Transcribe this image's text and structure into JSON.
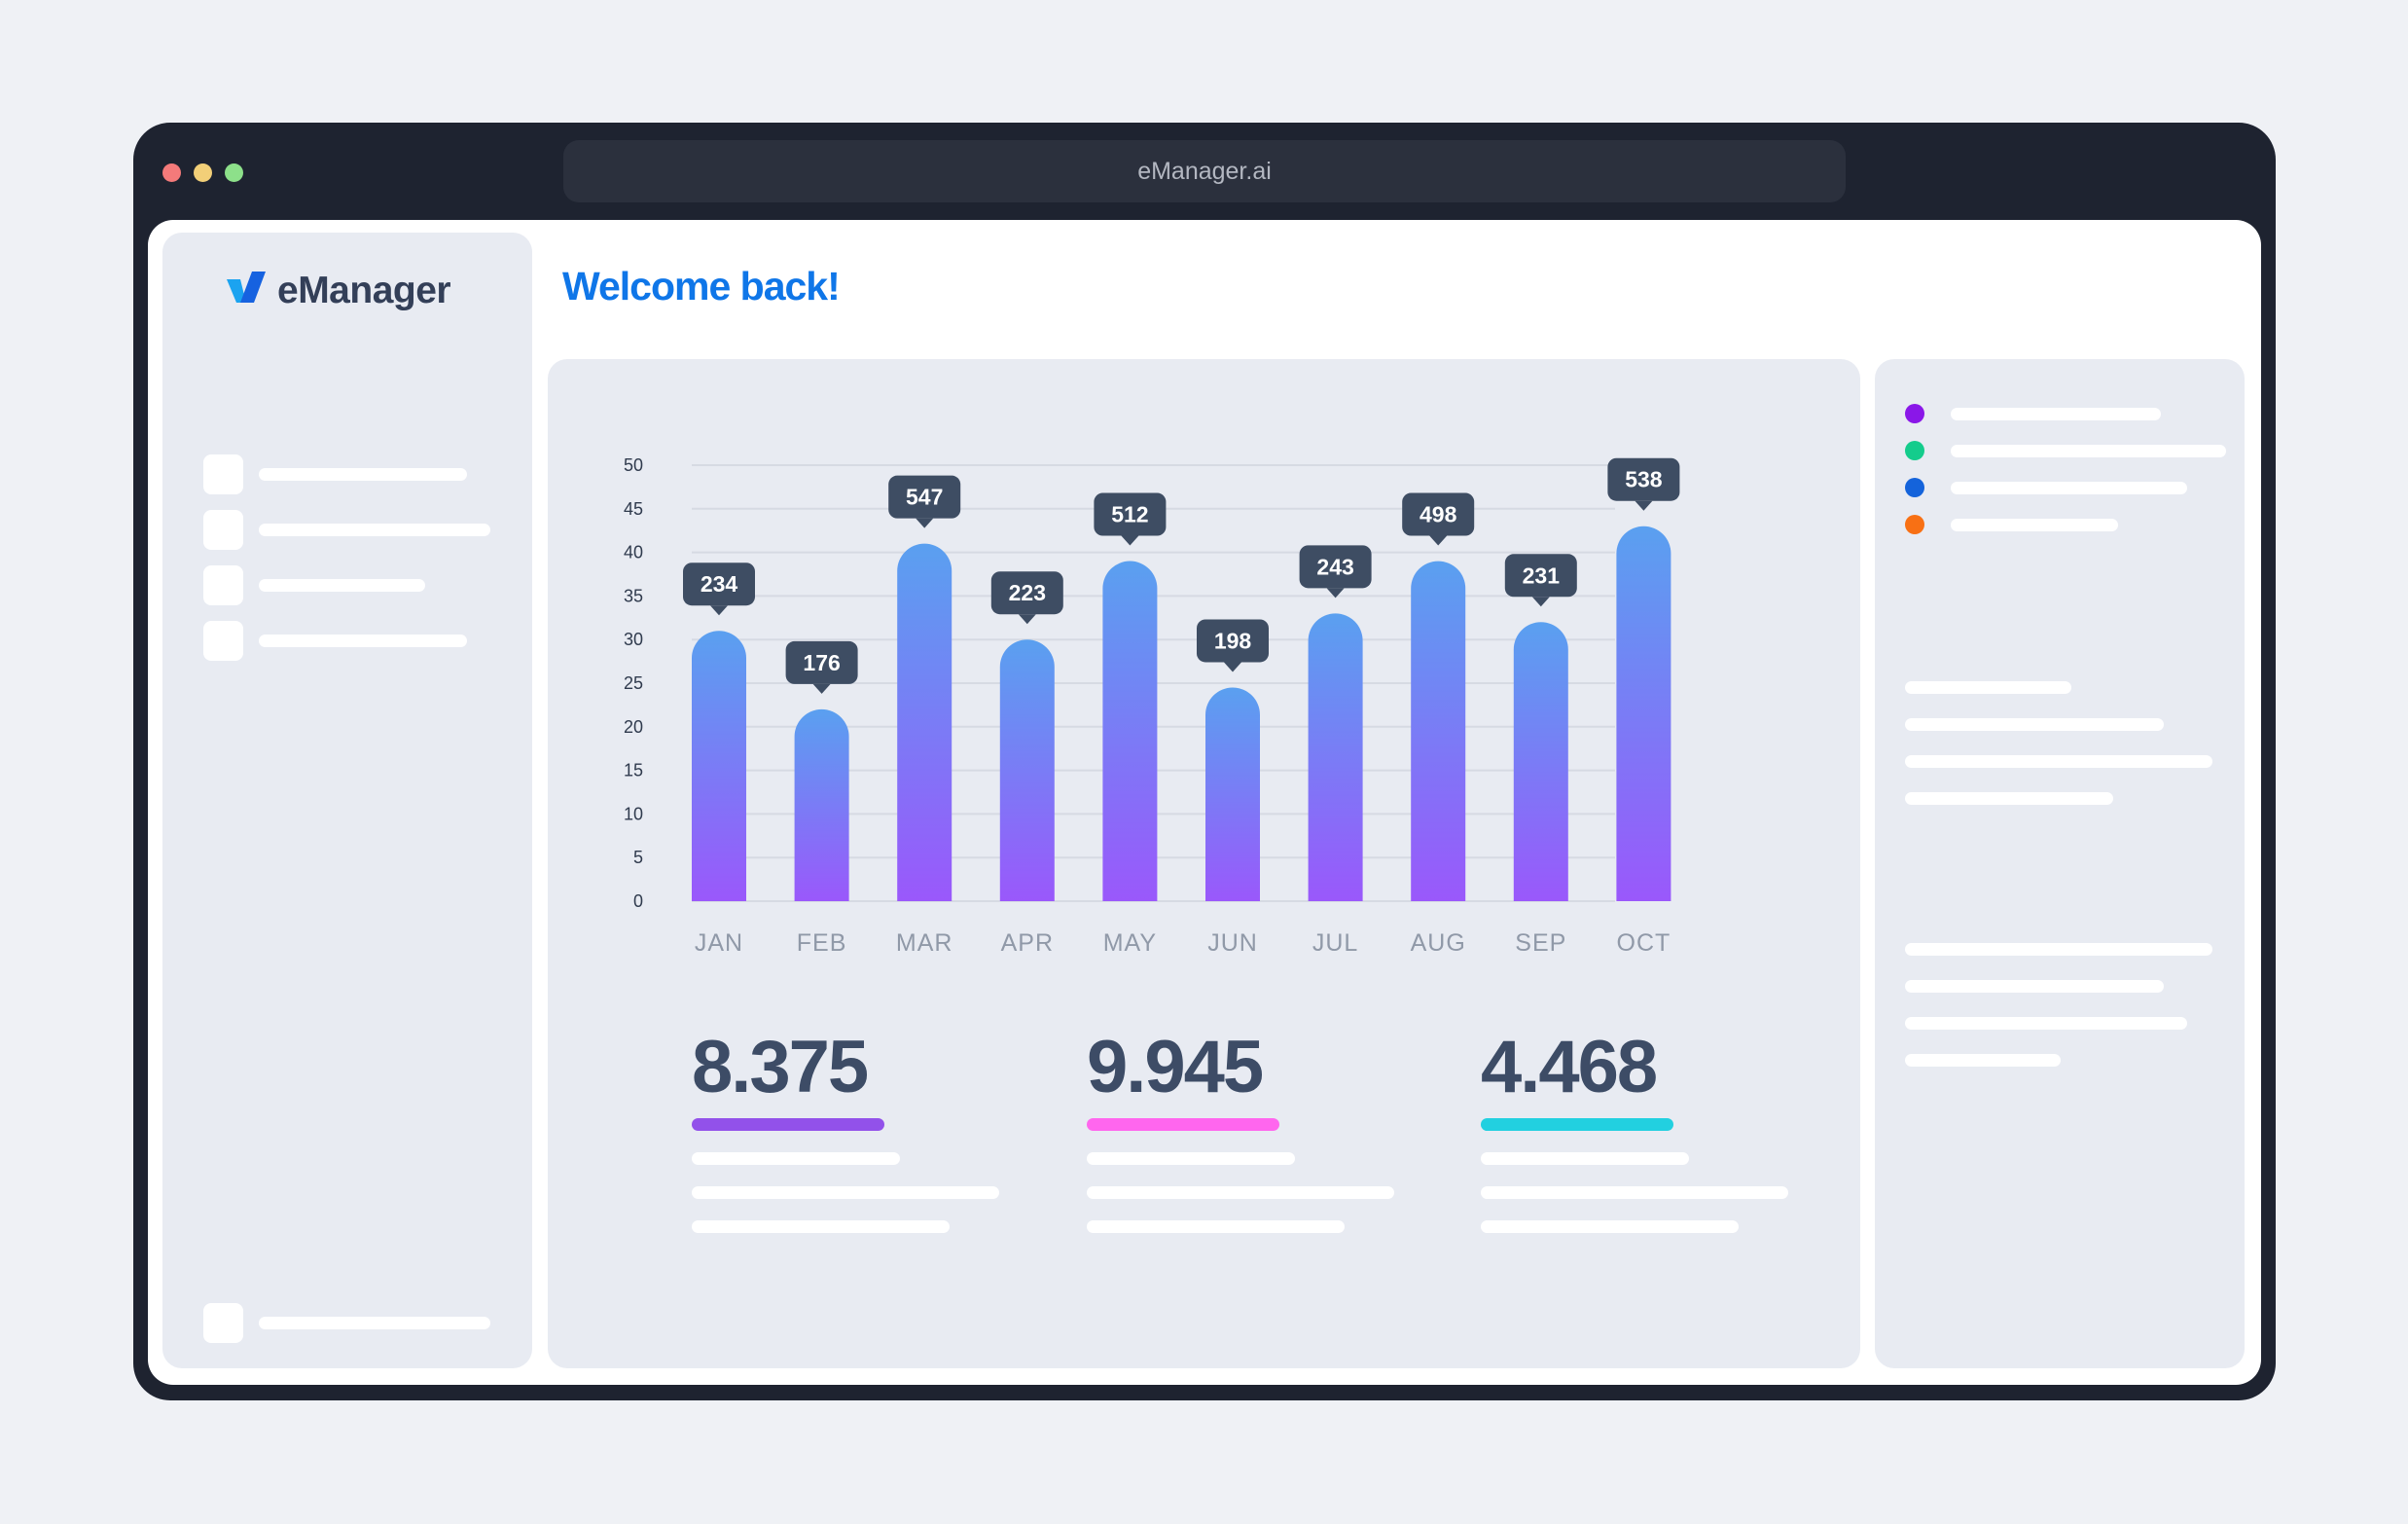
{
  "browser": {
    "url": "eManager.ai"
  },
  "app": {
    "logo_text": "eManager",
    "welcome": "Welcome back!"
  },
  "colors": {
    "brand": "#0f76e8",
    "bar_top": "#5aa0f0",
    "bar_bottom": "#9a58fb",
    "tooltip": "#3e4d63",
    "stat_1": "#9251ea",
    "stat_2": "#ff66ee",
    "stat_3": "#22d0e0",
    "legend": [
      "#8a17e8",
      "#14cc8c",
      "#1463db",
      "#f87014"
    ]
  },
  "chart_data": {
    "type": "bar",
    "categories": [
      "JAN",
      "FEB",
      "MAR",
      "APR",
      "MAY",
      "JUN",
      "JUL",
      "AUG",
      "SEP",
      "OCT"
    ],
    "values": [
      31,
      22,
      41,
      30,
      39,
      24.5,
      33,
      39,
      32,
      43
    ],
    "data_labels": [
      "234",
      "176",
      "547",
      "223",
      "512",
      "198",
      "243",
      "498",
      "231",
      "538"
    ],
    "ylim": [
      0,
      50
    ],
    "yticks": [
      "0",
      "5",
      "10",
      "15",
      "20",
      "25",
      "30",
      "35",
      "40",
      "45",
      "50"
    ],
    "grid": true
  },
  "stats": [
    {
      "value": "8.375"
    },
    {
      "value": "9.945"
    },
    {
      "value": "4.468"
    }
  ]
}
